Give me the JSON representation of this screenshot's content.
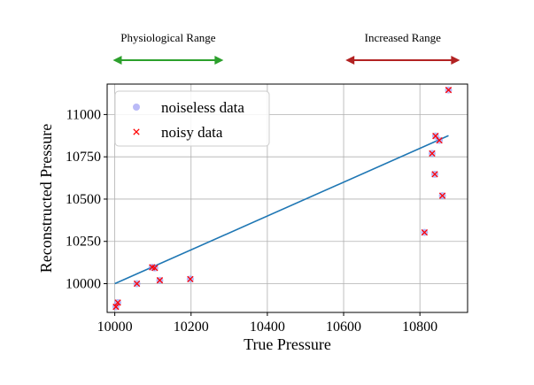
{
  "chart_data": {
    "type": "scatter",
    "xlabel": "True Pressure",
    "ylabel": "Reconstructed Pressure",
    "xlim": [
      9980,
      10925
    ],
    "ylim": [
      9830,
      11180
    ],
    "xticks": [
      10000,
      10200,
      10400,
      10600,
      10800
    ],
    "yticks": [
      10000,
      10250,
      10500,
      10750,
      11000
    ],
    "grid": true,
    "legend_position": "top-left",
    "ranges": [
      {
        "label": "Physiological Range",
        "from": 9995,
        "to": 10285,
        "color": "#2ca02c"
      },
      {
        "label": "Increased Range",
        "from": 10605,
        "to": 10905,
        "color": "#b22222"
      }
    ],
    "series": [
      {
        "name": "noiseless data",
        "marker": "circle",
        "color": "#8c8cf2",
        "points": [
          [
            10003,
            9863
          ],
          [
            10008,
            9888
          ],
          [
            10058,
            10000
          ],
          [
            10098,
            10097
          ],
          [
            10105,
            10093
          ],
          [
            10118,
            10020
          ],
          [
            10198,
            10027
          ],
          [
            10812,
            10303
          ],
          [
            10832,
            10770
          ],
          [
            10839,
            10647
          ],
          [
            10841,
            10873
          ],
          [
            10851,
            10847
          ],
          [
            10859,
            10520
          ],
          [
            10875,
            11145
          ]
        ]
      },
      {
        "name": "noisy data",
        "marker": "x",
        "color": "#ff0000",
        "points": [
          [
            10003,
            9863
          ],
          [
            10008,
            9888
          ],
          [
            10058,
            10000
          ],
          [
            10098,
            10097
          ],
          [
            10105,
            10093
          ],
          [
            10118,
            10020
          ],
          [
            10198,
            10027
          ],
          [
            10812,
            10303
          ],
          [
            10832,
            10770
          ],
          [
            10839,
            10647
          ],
          [
            10841,
            10873
          ],
          [
            10851,
            10847
          ],
          [
            10859,
            10520
          ],
          [
            10875,
            11145
          ]
        ]
      }
    ],
    "fit_line": {
      "color": "#1f77b4",
      "from": [
        10000,
        10000
      ],
      "to": [
        10875,
        10875
      ]
    }
  }
}
